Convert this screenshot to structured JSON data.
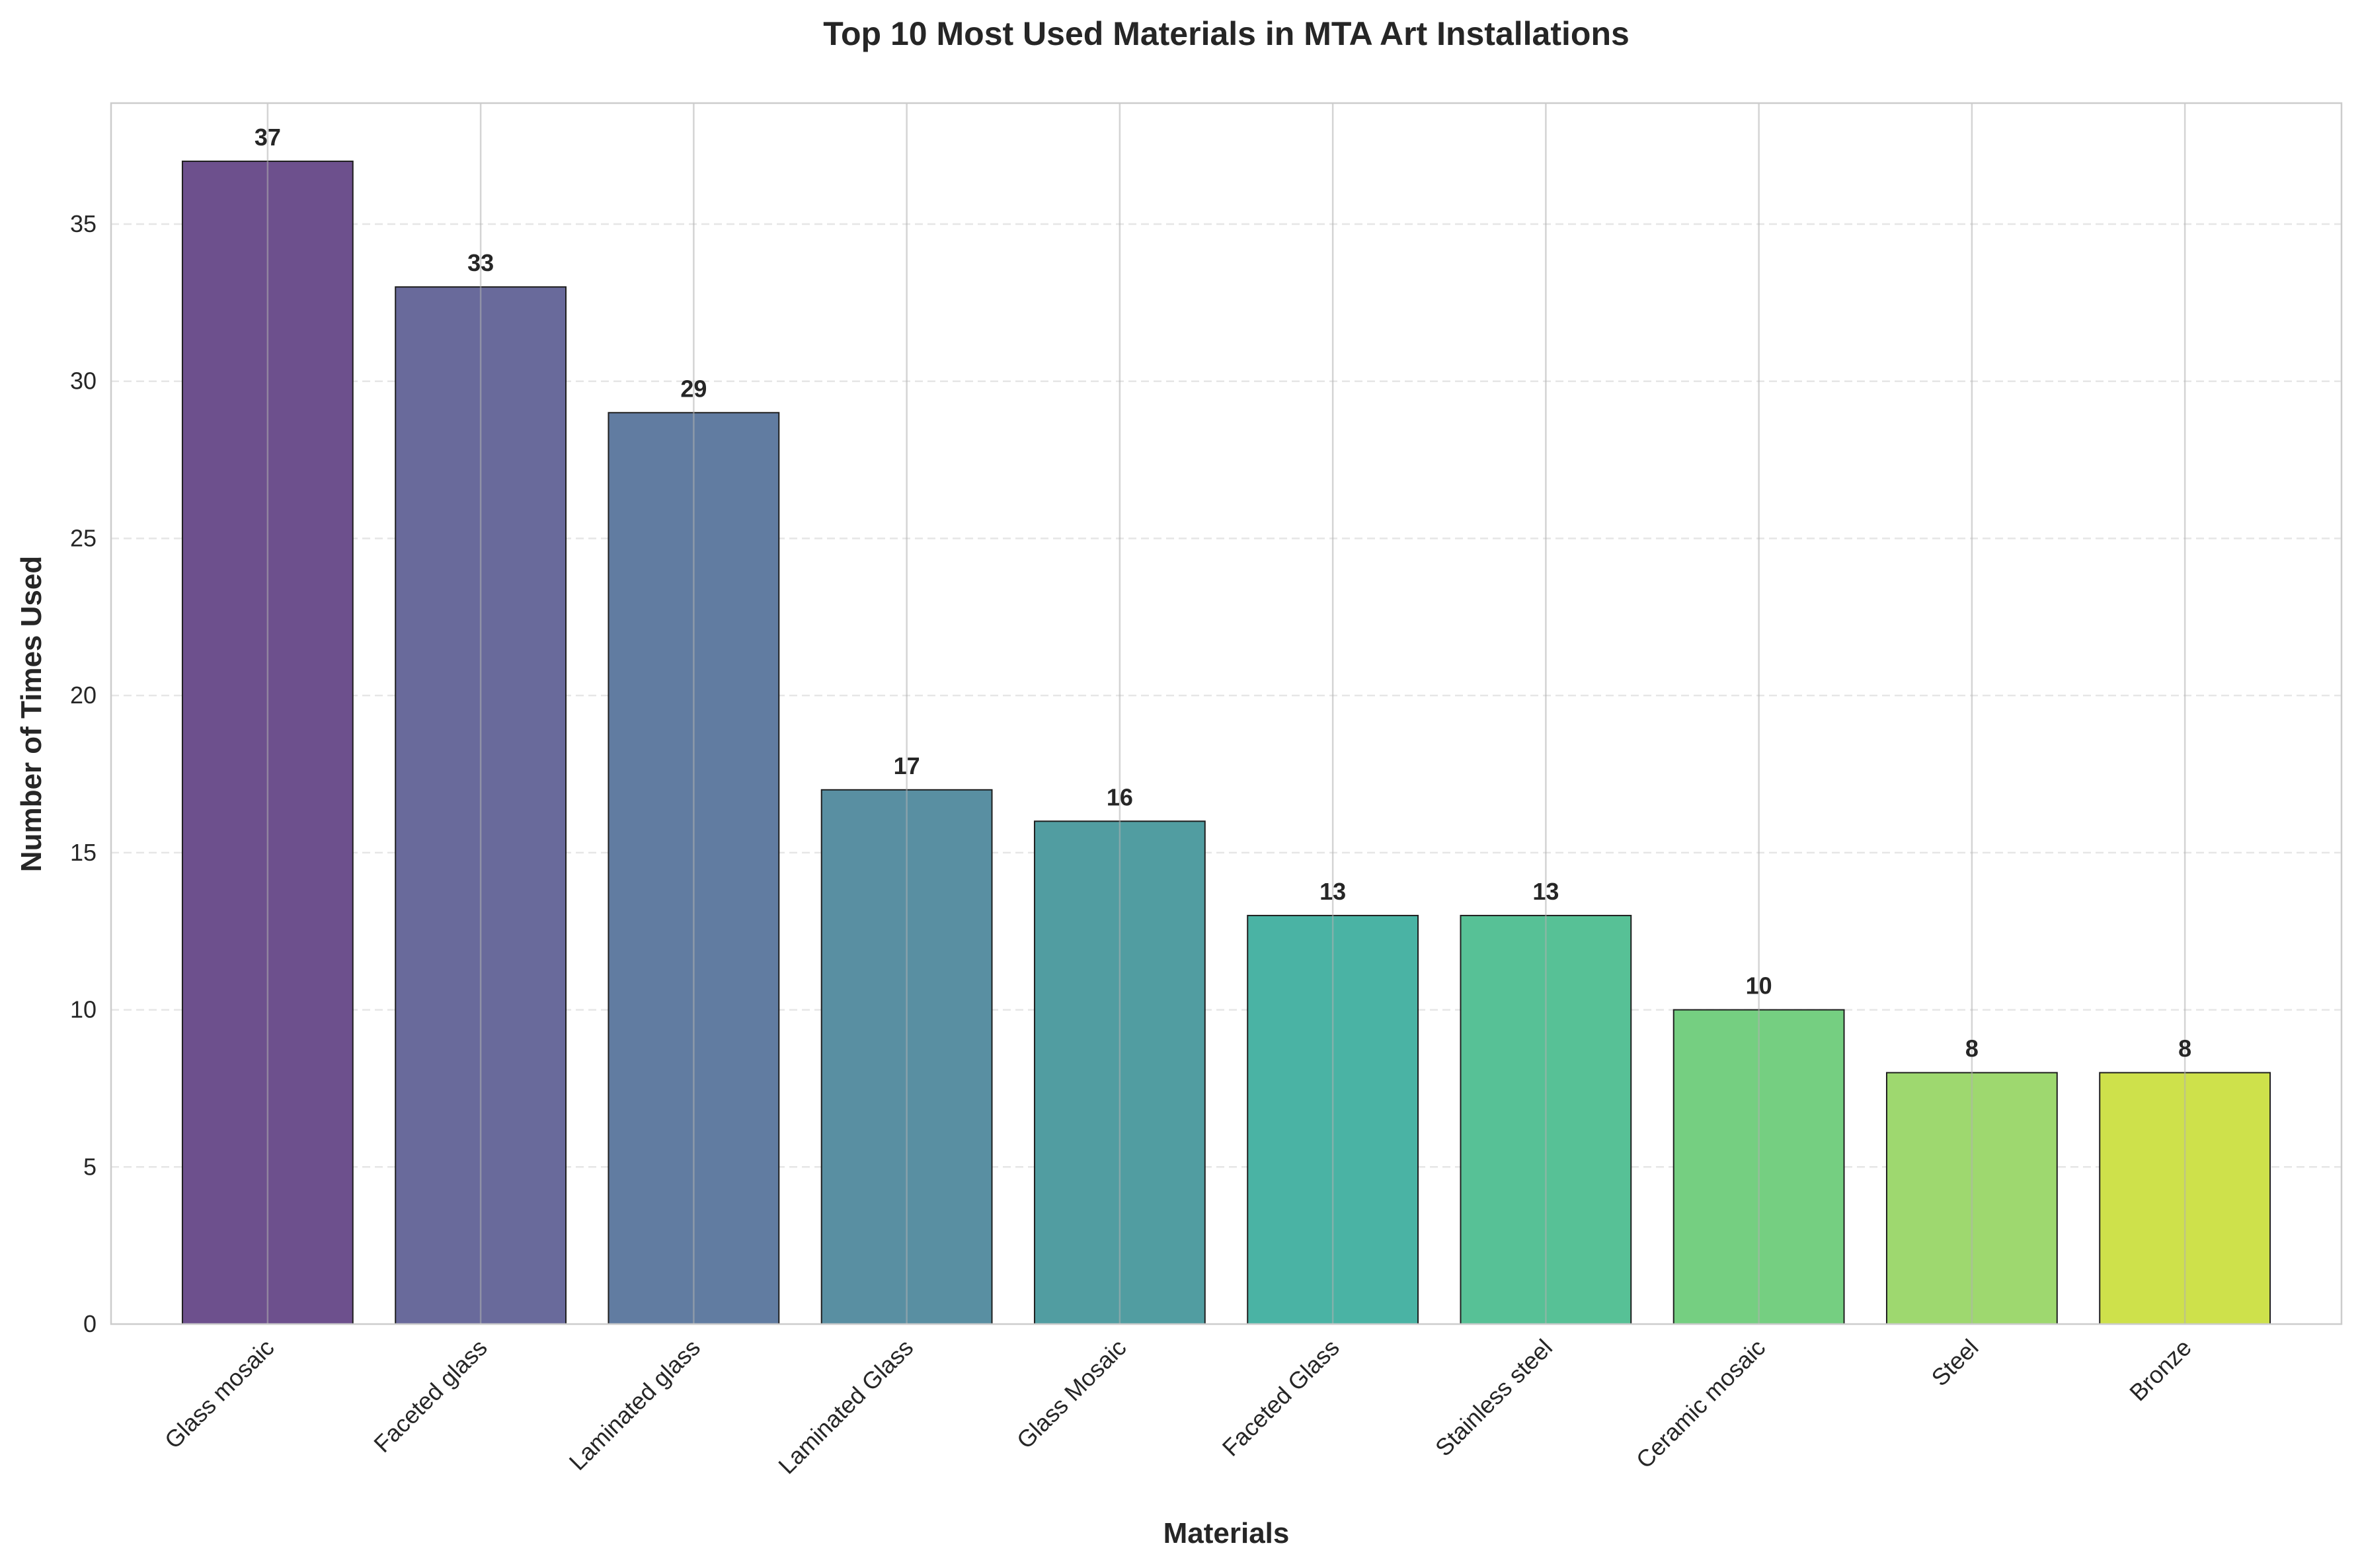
{
  "chart_data": {
    "type": "bar",
    "title": "Top 10 Most Used Materials in MTA Art Installations",
    "xlabel": "Materials",
    "ylabel": "Number of Times Used",
    "categories": [
      "Glass mosaic",
      "Faceted glass",
      "Laminated glass",
      "Laminated Glass",
      "Glass Mosaic",
      "Faceted Glass",
      "Stainless steel",
      "Ceramic mosaic",
      "Steel",
      "Bronze"
    ],
    "values": [
      37,
      33,
      29,
      17,
      16,
      13,
      13,
      10,
      8,
      8
    ],
    "value_labels": [
      "37",
      "33",
      "29",
      "17",
      "16",
      "13",
      "13",
      "10",
      "8",
      "8"
    ],
    "colors": [
      "#6b4e8c",
      "#67689a",
      "#5f7aa0",
      "#578ea1",
      "#4f9ca0",
      "#48b2a3",
      "#55c095",
      "#73ce80",
      "#9dd86d",
      "#cde149"
    ],
    "ylim": [
      0,
      38.85
    ],
    "yticks": [
      0,
      5,
      10,
      15,
      20,
      25,
      30,
      35
    ],
    "ytick_labels": [
      "0",
      "5",
      "10",
      "15",
      "20",
      "25",
      "30",
      "35"
    ],
    "grid": true,
    "legend": "none"
  }
}
